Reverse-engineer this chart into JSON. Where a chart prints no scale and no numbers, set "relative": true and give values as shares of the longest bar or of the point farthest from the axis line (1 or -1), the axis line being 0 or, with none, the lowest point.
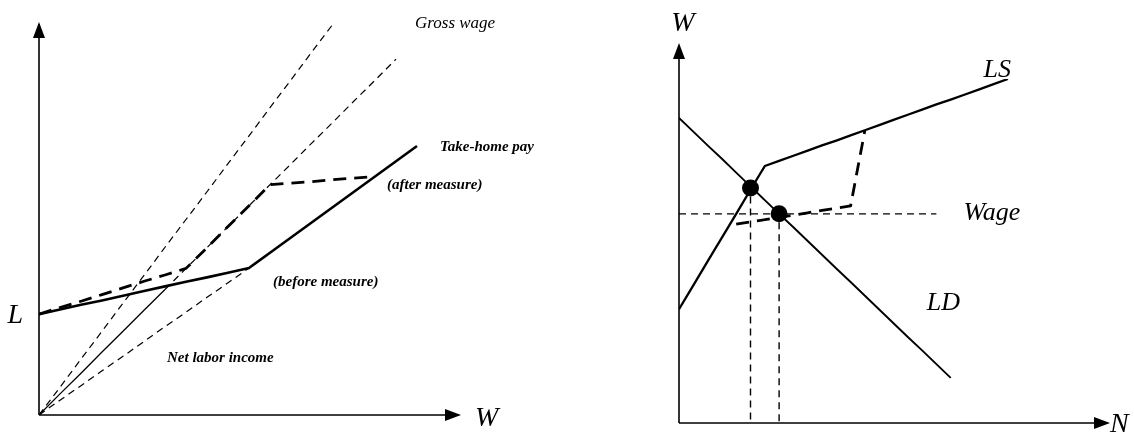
{
  "chart_data": [
    {
      "type": "line",
      "relative": true,
      "xlabel": "W",
      "marker": "none",
      "categories": [
        null,
        null,
        null,
        null,
        null,
        null,
        null,
        null,
        null,
        null,
        null,
        null,
        null,
        null,
        null,
        null,
        null,
        null,
        null,
        null,
        null
      ],
      "series": [
        {
          "color": "#000000",
          "line_style": "dashed",
          "values": [
            0,
            0.071,
            0.143,
            0.214,
            0.286,
            0.357,
            0.429,
            0.5,
            0.571,
            0.643,
            0.714,
            0.786,
            0.857,
            0.929,
            1,
            null,
            null,
            null,
            null,
            null,
            null
          ]
        },
        {
          "color": "#000000",
          "line_style": "solid",
          "values": [
            0,
            0.054,
            0.107,
            0.161,
            0.214,
            0.268,
            0.321,
            null,
            null,
            null,
            null,
            null,
            null,
            null,
            null,
            null,
            null,
            null,
            null,
            null,
            null
          ]
        },
        {
          "name": "Gross wage",
          "color": "#000000",
          "line_style": "dashed",
          "values": [
            null,
            null,
            null,
            null,
            null,
            null,
            0.321,
            0.375,
            0.428,
            0.482,
            0.535,
            0.589,
            0.642,
            0.696,
            0.749,
            0.803,
            0.856,
            0.91,
            null,
            null,
            null
          ]
        },
        {
          "color": "#000000",
          "line_style": "dashed",
          "values": [
            0,
            0.038,
            0.075,
            0.113,
            0.15,
            0.188,
            0.226,
            0.263,
            0.301,
            0.338,
            0.376,
            null,
            null,
            null,
            null,
            null,
            null,
            null,
            null,
            null,
            null
          ]
        },
        {
          "name": "(before measure)",
          "color": "#000000",
          "line_style": "solid",
          "values": [
            0.258,
            0.27,
            0.282,
            0.293,
            0.305,
            0.317,
            0.329,
            0.341,
            0.352,
            0.364,
            0.376,
            0.415,
            0.454,
            0.493,
            0.532,
            0.571,
            0.61,
            0.649,
            0.688,
            null,
            null
          ]
        },
        {
          "name": "(after measure)",
          "color": "#000000",
          "line_style": "dashed",
          "values": [
            0.258,
            0.275,
            0.291,
            0.308,
            0.325,
            0.342,
            0.358,
            0.375,
            0.428,
            0.482,
            0.535,
            0.589,
            0.593,
            0.597,
            0.602,
            0.606,
            0.61,
            null,
            null,
            null,
            null
          ]
        }
      ],
      "annotations": [
        "Take-home pay",
        "Net labor income",
        "L"
      ]
    },
    {
      "type": "line",
      "relative": true,
      "xlabel": "N",
      "ylabel": "W",
      "marker": "none",
      "categories": [
        null,
        null,
        null,
        null,
        null,
        null,
        null,
        null,
        null,
        null,
        null,
        null,
        null,
        null,
        null,
        null,
        null,
        null,
        null,
        null,
        null,
        null,
        null,
        null,
        null,
        null,
        null,
        null,
        null,
        null,
        null
      ],
      "series": [
        {
          "name": "LS",
          "color": "#000000",
          "line_style": "solid",
          "values": [
            0.331,
            0.4,
            0.47,
            0.539,
            0.608,
            0.678,
            0.747,
            0.762,
            0.777,
            0.792,
            0.807,
            0.821,
            0.836,
            0.851,
            0.866,
            0.881,
            0.896,
            0.911,
            0.926,
            0.94,
            0.955,
            0.97,
            0.985,
            1,
            null,
            null,
            null,
            null,
            null,
            null,
            null
          ]
        },
        {
          "name": "LD",
          "color": "#000000",
          "line_style": "solid",
          "values": [
            0.887,
            0.847,
            0.807,
            0.768,
            0.728,
            0.688,
            0.648,
            0.608,
            0.569,
            0.529,
            0.489,
            0.449,
            0.41,
            0.37,
            0.33,
            0.29,
            0.25,
            0.211,
            0.171,
            0.131,
            null,
            null,
            null,
            null,
            null,
            null,
            null,
            null,
            null,
            null,
            null
          ]
        },
        {
          "name": "Wage",
          "color": "#000000",
          "line_style": "dashed",
          "values": [
            0.608,
            0.608,
            0.608,
            0.608,
            0.608,
            0.608,
            0.608,
            0.608,
            0.608,
            0.608,
            0.608,
            0.608,
            0.608,
            0.608,
            0.608,
            0.608,
            0.608,
            0.608,
            0.608,
            null,
            null,
            null,
            null,
            null,
            null,
            null,
            null,
            null,
            null,
            null,
            null
          ]
        },
        {
          "color": "#000000",
          "line_style": "dashed",
          "values": [
            null,
            null,
            null,
            null,
            0.578,
            0.585,
            0.591,
            0.598,
            0.604,
            0.611,
            0.618,
            0.624,
            0.631,
            0.851,
            null,
            null,
            null,
            null,
            null,
            null,
            null,
            null,
            null,
            null,
            null,
            null,
            null,
            null,
            null,
            null,
            null
          ]
        },
        {
          "color": "#000000",
          "marker": "circle",
          "line_style": "dashed",
          "values": [
            null,
            null,
            null,
            null,
            null,
            0.683,
            null,
            0.608,
            null,
            null,
            null,
            null,
            null,
            null,
            null,
            null,
            null,
            null,
            null,
            null,
            null,
            null,
            null,
            null,
            null,
            null,
            null,
            null,
            null,
            null,
            null
          ]
        }
      ]
    }
  ]
}
